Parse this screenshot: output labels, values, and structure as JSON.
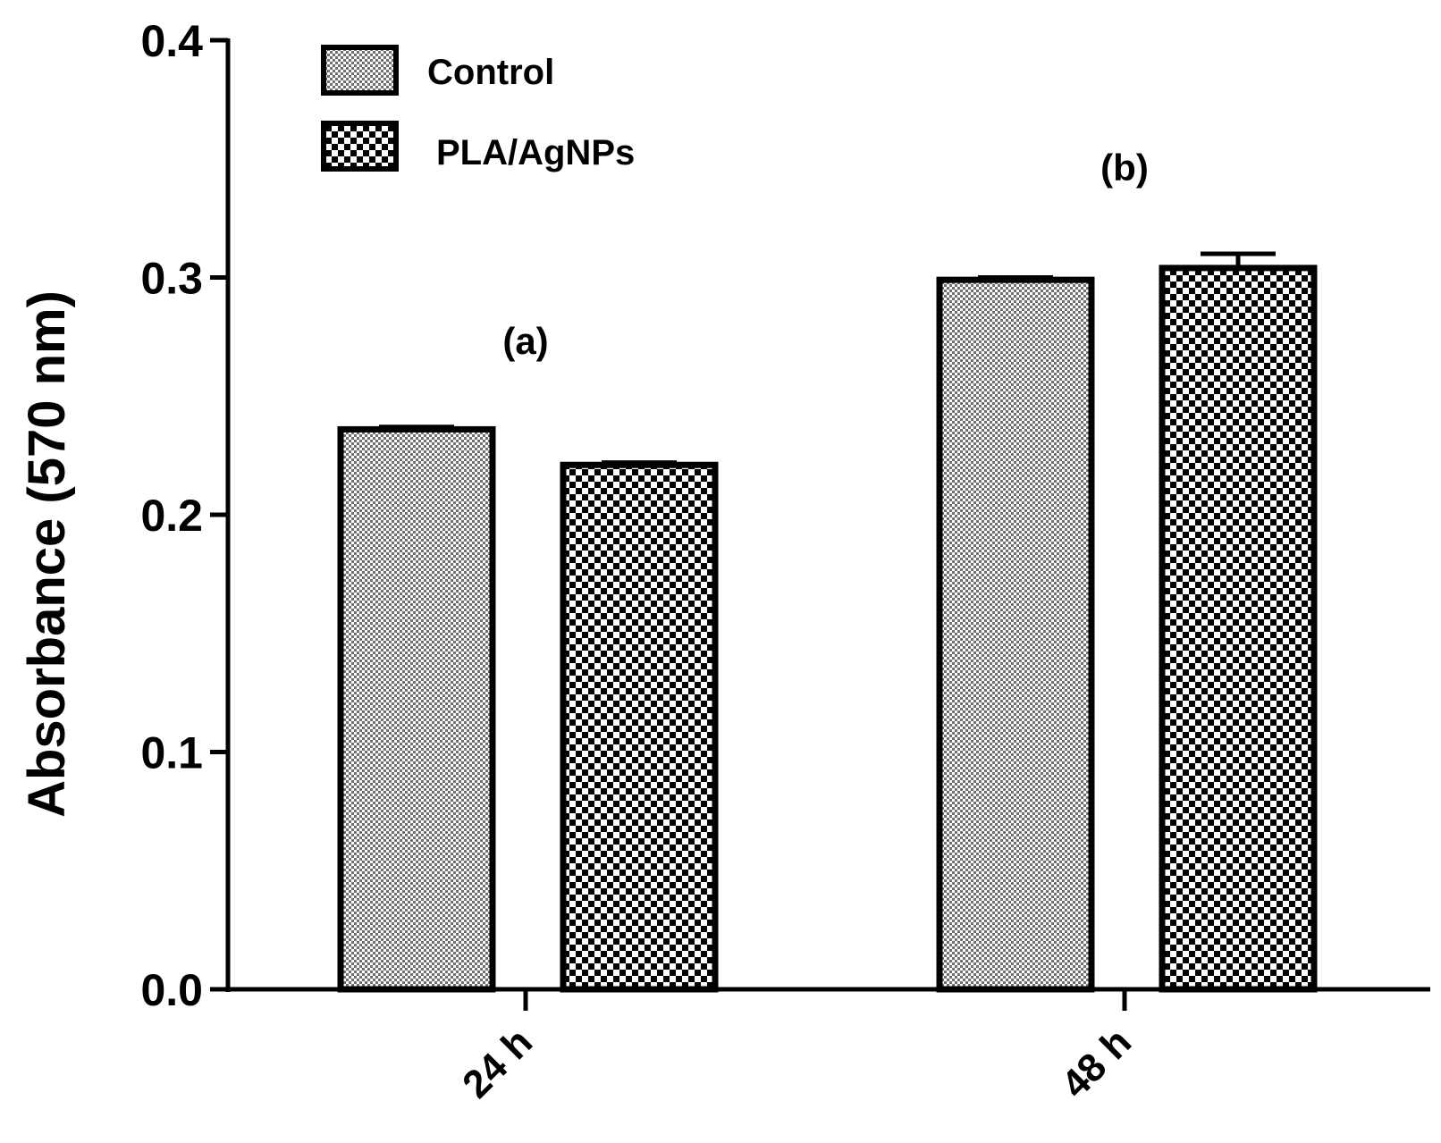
{
  "chart_data": {
    "type": "bar",
    "title": "",
    "xlabel": "",
    "ylabel": "Absorbance (570 nm)",
    "ylim": [
      0,
      0.4
    ],
    "yticks": [
      0.0,
      0.1,
      0.2,
      0.3,
      0.4
    ],
    "ytick_labels": [
      "0.0",
      "0.1",
      "0.2",
      "0.3",
      "0.4"
    ],
    "categories": [
      "24 h",
      "48 h"
    ],
    "series": [
      {
        "name": "Control",
        "pattern": "fine-checker",
        "values": [
          0.236,
          0.299
        ],
        "errors": [
          0.001,
          0.001
        ]
      },
      {
        "name": "PLA/AgNPs",
        "pattern": "coarse-checker",
        "values": [
          0.221,
          0.304
        ],
        "errors": [
          0.001,
          0.006
        ]
      }
    ],
    "annotations": [
      {
        "text": "(a)",
        "category": "24 h"
      },
      {
        "text": "(b)",
        "category": "48 h"
      }
    ],
    "legend_position": "top-left",
    "grid": false,
    "colors": {
      "ink": "#000000",
      "light": "#ffffff",
      "fine_fill": "#8c8c8c"
    }
  }
}
